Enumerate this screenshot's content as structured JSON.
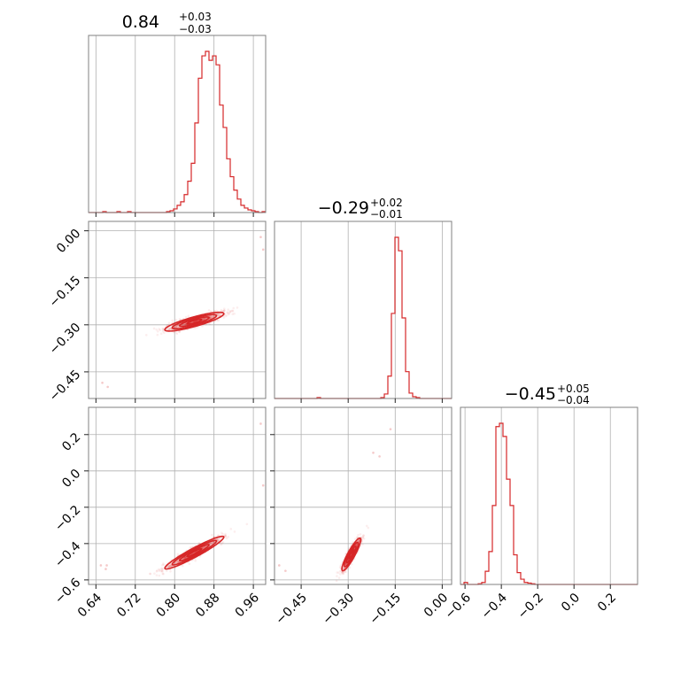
{
  "chart_data": {
    "type": "corner",
    "color": "#d62728",
    "grid": true,
    "parameters": [
      {
        "title": {
          "median": "0.84",
          "plus": "+0.03",
          "minus": "−0.03"
        },
        "range": [
          0.625,
          0.985
        ],
        "ticks": [
          0.64,
          0.72,
          0.8,
          0.88,
          0.96
        ],
        "tick_labels": [
          "0.64",
          "0.72",
          "0.80",
          "0.88",
          "0.96"
        ]
      },
      {
        "title": {
          "median": "−0.29",
          "plus": "+0.02",
          "minus": "−0.01"
        },
        "range": [
          -0.535,
          0.03
        ],
        "ticks": [
          -0.45,
          -0.3,
          -0.15,
          0.0
        ],
        "tick_labels": [
          "−0.45",
          "−0.30",
          "−0.15",
          "0.00"
        ]
      },
      {
        "title": {
          "median": "−0.45",
          "plus": "+0.05",
          "minus": "−0.04"
        },
        "range": [
          -0.625,
          0.35
        ],
        "ticks": [
          -0.6,
          -0.4,
          -0.2,
          0.0,
          0.2
        ],
        "tick_labels": [
          "−0.6",
          "−0.4",
          "−0.2",
          "0.0",
          "0.2"
        ]
      }
    ],
    "histograms": [
      {
        "param": 0,
        "bin_edges_range": [
          0.625,
          0.985
        ],
        "counts": [
          0,
          0,
          0,
          0,
          1,
          0,
          0,
          0,
          1,
          0,
          0,
          1,
          0,
          0,
          0,
          0,
          0,
          0,
          0,
          0,
          0,
          0,
          1,
          2,
          4,
          8,
          12,
          20,
          35,
          55,
          100,
          150,
          175,
          180,
          170,
          175,
          165,
          120,
          95,
          60,
          40,
          25,
          15,
          8,
          5,
          3,
          2,
          1,
          0,
          1
        ]
      },
      {
        "param": 1,
        "bin_edges_range": [
          -0.535,
          0.03
        ],
        "counts": [
          0,
          0,
          0,
          0,
          0,
          0,
          0,
          0,
          0,
          0,
          0,
          0,
          1,
          0,
          0,
          0,
          0,
          0,
          0,
          0,
          0,
          0,
          0,
          0,
          0,
          0,
          0,
          0,
          0,
          0,
          1,
          5,
          25,
          95,
          180,
          165,
          90,
          30,
          6,
          2,
          1,
          0,
          0,
          0,
          0,
          0,
          0,
          0,
          0,
          0
        ]
      },
      {
        "param": 2,
        "bin_edges_range": [
          -0.625,
          0.35
        ],
        "counts": [
          0,
          3,
          0,
          0,
          0,
          1,
          3,
          20,
          50,
          120,
          240,
          245,
          225,
          160,
          120,
          45,
          18,
          8,
          3,
          2,
          1,
          0,
          0,
          0,
          0,
          0,
          0,
          0,
          0,
          0,
          0,
          0,
          0,
          0,
          0,
          0,
          0,
          0,
          0,
          0,
          0,
          0,
          0,
          0,
          0,
          0,
          0,
          0,
          0,
          0
        ]
      }
    ],
    "scatter_panels": [
      {
        "x_param": 0,
        "y_param": 1,
        "center": [
          0.84,
          -0.29
        ],
        "sigma": [
          0.03,
          0.015
        ],
        "correlation": 0.85,
        "outliers": [
          [
            0.653,
            -0.485
          ],
          [
            0.664,
            -0.498
          ],
          [
            0.98,
            -0.06
          ],
          [
            0.975,
            -0.02
          ]
        ]
      },
      {
        "x_param": 0,
        "y_param": 2,
        "center": [
          0.84,
          -0.45
        ],
        "sigma": [
          0.03,
          0.045
        ],
        "correlation": 0.95,
        "outliers": [
          [
            0.65,
            -0.52
          ],
          [
            0.662,
            -0.52
          ],
          [
            0.66,
            -0.54
          ],
          [
            0.98,
            -0.08
          ],
          [
            0.975,
            0.26
          ]
        ]
      },
      {
        "x_param": 1,
        "y_param": 2,
        "center": [
          -0.29,
          -0.46
        ],
        "sigma": [
          0.015,
          0.045
        ],
        "correlation": 0.9,
        "outliers": [
          [
            -0.52,
            -0.52
          ],
          [
            -0.5,
            -0.55
          ],
          [
            -0.165,
            0.23
          ],
          [
            -0.2,
            0.08
          ],
          [
            -0.22,
            0.1
          ]
        ]
      }
    ],
    "contour_levels_sigma": [
      0.5,
      1.0,
      1.5,
      2.0
    ]
  }
}
